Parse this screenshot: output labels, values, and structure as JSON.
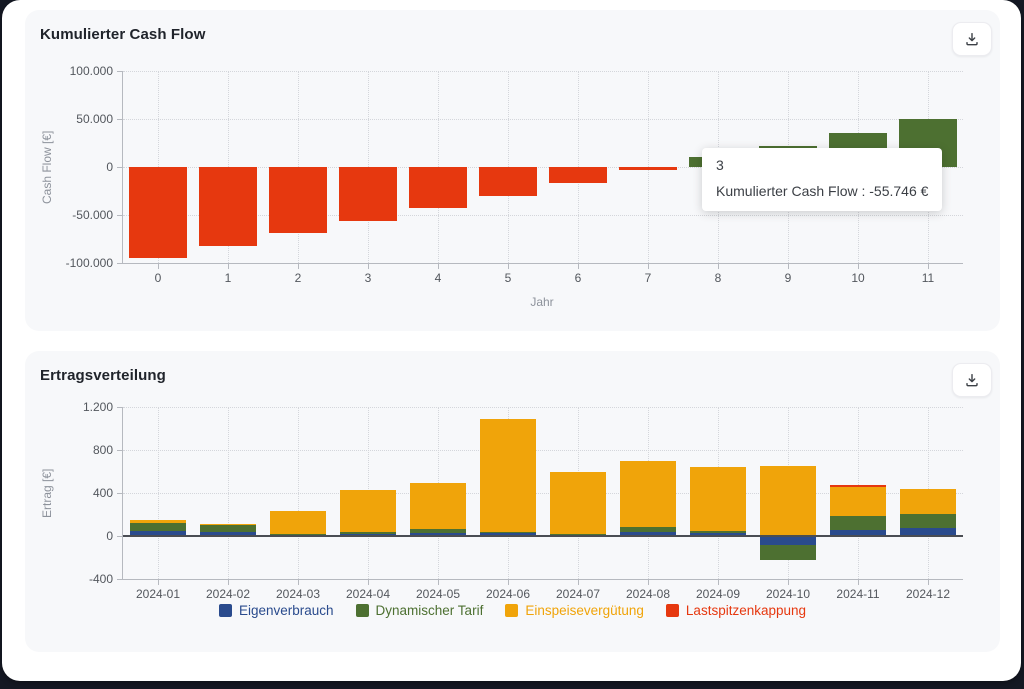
{
  "tooltip": {
    "title": "3",
    "text": "Kumulierter Cash Flow : -55.746 €"
  },
  "icons": {
    "download": "download-icon"
  },
  "chart_data": [
    {
      "type": "bar",
      "title": "Kumulierter Cash Flow",
      "xlabel": "Jahr",
      "ylabel": "Cash Flow [€]",
      "unit": "€",
      "categories": [
        "0",
        "1",
        "2",
        "3",
        "4",
        "5",
        "6",
        "7",
        "8",
        "9",
        "10",
        "11"
      ],
      "values": [
        -95000,
        -82000,
        -69000,
        -55746,
        -43000,
        -30000,
        -17000,
        -3500,
        10000,
        22000,
        35000,
        49500
      ],
      "ylim": [
        -100000,
        100000
      ],
      "yticks": [
        {
          "label": "100.000",
          "value": 100000,
          "style": "dashed"
        },
        {
          "label": "50.000",
          "value": 50000,
          "style": "dashed"
        },
        {
          "label": "0",
          "value": 0,
          "style": "dashed"
        },
        {
          "label": "-50.000",
          "value": -50000,
          "style": "dashed"
        },
        {
          "label": "-100.000",
          "value": -100000,
          "style": "axis"
        }
      ],
      "colors": {
        "positive": "#4D7031",
        "negative": "#E6380F"
      },
      "bar_width_frac": 0.83,
      "grid": "dotted",
      "legend_position": "none"
    },
    {
      "type": "bar-stacked",
      "title": "Ertragsverteilung",
      "xlabel": "",
      "ylabel": "Ertrag [€]",
      "unit": "€",
      "categories": [
        "2024-01",
        "2024-02",
        "2024-03",
        "2024-04",
        "2024-05",
        "2024-06",
        "2024-07",
        "2024-08",
        "2024-09",
        "2024-10",
        "2024-11",
        "2024-12"
      ],
      "series": [
        {
          "name": "Eigenverbrauch",
          "color": "#2A4B8D",
          "values": [
            45,
            38,
            8,
            22,
            30,
            25,
            12,
            38,
            28,
            -80,
            58,
            70
          ]
        },
        {
          "name": "Dynamischer Tarif",
          "color": "#4D7031",
          "values": [
            78,
            60,
            6,
            12,
            32,
            15,
            6,
            48,
            14,
            -142,
            125,
            138
          ]
        },
        {
          "name": "Einspeisevergütung",
          "color": "#F0A40A",
          "values": [
            22,
            10,
            216,
            396,
            428,
            1045,
            578,
            614,
            598,
            648,
            275,
            225
          ]
        },
        {
          "name": "Lastspitzenkappung",
          "color": "#E6380F",
          "values": [
            0,
            0,
            0,
            0,
            0,
            0,
            0,
            0,
            0,
            0,
            16,
            0
          ]
        }
      ],
      "ylim": [
        -400,
        1200
      ],
      "yticks": [
        {
          "label": "1.200",
          "value": 1200,
          "style": "dashed"
        },
        {
          "label": "800",
          "value": 800,
          "style": "dashed"
        },
        {
          "label": "400",
          "value": 400,
          "style": "dashed"
        },
        {
          "label": "0",
          "value": 0,
          "style": "zero"
        },
        {
          "label": "-400",
          "value": -400,
          "style": "axis"
        }
      ],
      "bar_width_frac": 0.81,
      "grid": "dotted",
      "legend_position": "bottom"
    }
  ]
}
